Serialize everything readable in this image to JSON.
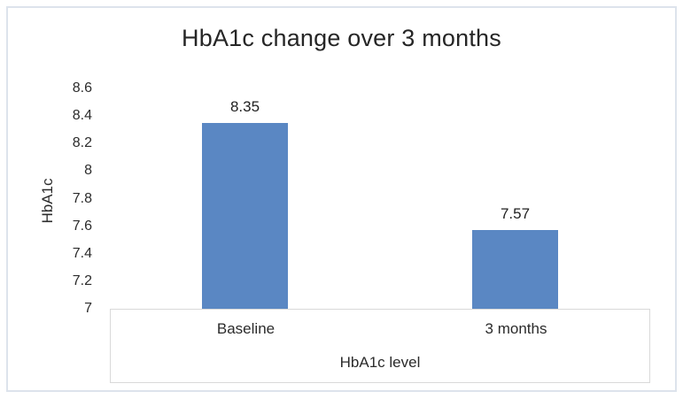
{
  "chart_data": {
    "type": "bar",
    "title": "HbA1c change over 3 months",
    "categories": [
      "Baseline",
      "3 months"
    ],
    "values": [
      8.35,
      7.57
    ],
    "data_labels": [
      "8.35",
      "7.57"
    ],
    "xlabel": "HbA1c level",
    "ylabel": "HbA1c",
    "ylim": [
      7,
      8.6
    ],
    "ytick_step": 0.2,
    "ytick_labels": [
      "7",
      "7.2",
      "7.4",
      "7.6",
      "7.8",
      "8",
      "8.2",
      "8.4",
      "8.6"
    ],
    "bar_color": "#5a87c3",
    "grid": false,
    "legend_position": "none"
  },
  "frame": {
    "border_color": "#dde3ec",
    "axis_box_border_color": "#d9d9d9"
  },
  "colors": {
    "text": "#262626"
  }
}
